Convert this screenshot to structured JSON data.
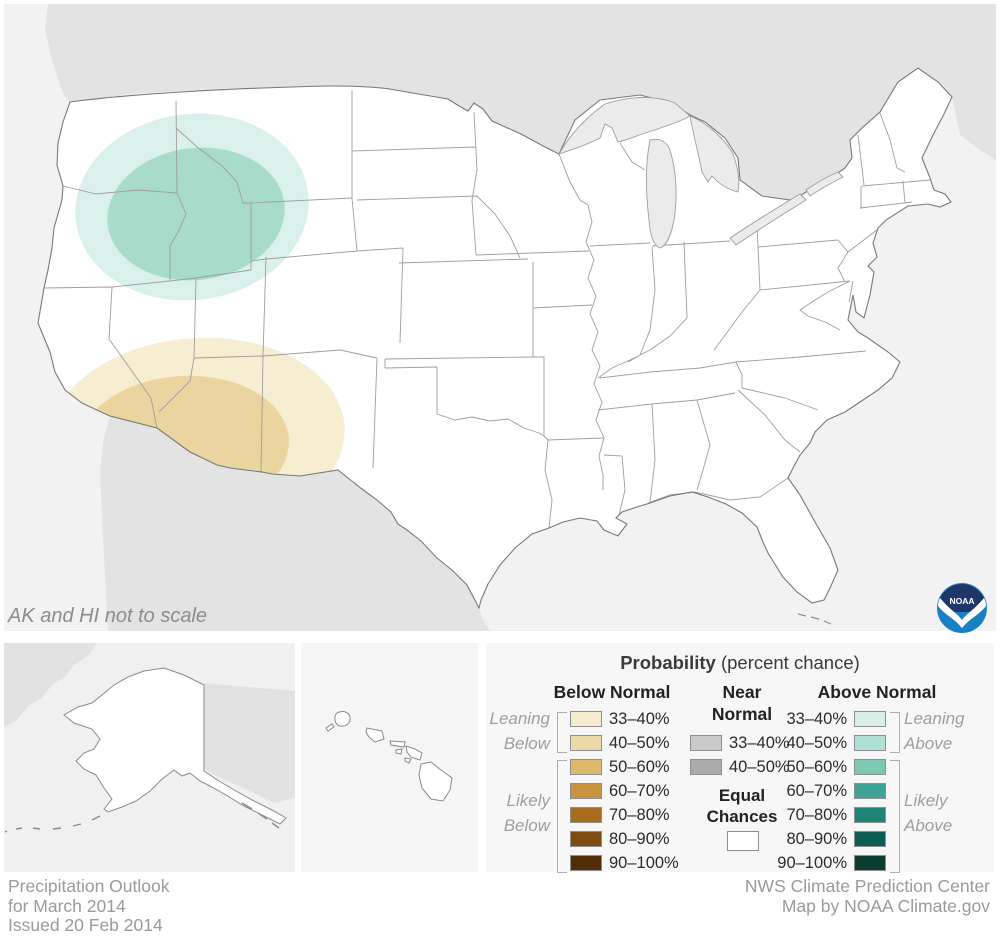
{
  "map_note": "AK and HI not to scale",
  "noaa": {
    "logo_text": "NOAA"
  },
  "footer": {
    "left_lines": [
      "Precipitation Outlook",
      "for March 2014",
      "Issued 20 Feb 2014"
    ],
    "right_lines": [
      "NWS Climate Prediction Center",
      "Map by NOAA Climate.gov"
    ]
  },
  "legend": {
    "title_bold": "Probability",
    "title_rest": " (percent chance)",
    "below": {
      "header": "Below Normal",
      "rows": [
        {
          "label": "33–40%",
          "color": "#f6eccf"
        },
        {
          "label": "40–50%",
          "color": "#ecd9a7"
        },
        {
          "label": "50–60%",
          "color": "#dcb96d"
        },
        {
          "label": "60–70%",
          "color": "#c99440"
        },
        {
          "label": "70–80%",
          "color": "#a96c1f"
        },
        {
          "label": "80–90%",
          "color": "#7e4b10"
        },
        {
          "label": "90–100%",
          "color": "#4e2d07"
        }
      ]
    },
    "near": {
      "header_lines": [
        "Near",
        "Normal"
      ],
      "rows": [
        {
          "label": "33–40%",
          "color": "#c9c9c9"
        },
        {
          "label": "40–50%",
          "color": "#ababab"
        }
      ]
    },
    "above": {
      "header": "Above Normal",
      "rows": [
        {
          "label": "33–40%",
          "color": "#d8efe9"
        },
        {
          "label": "40–50%",
          "color": "#b0e0d3"
        },
        {
          "label": "50–60%",
          "color": "#7cc7b2"
        },
        {
          "label": "60–70%",
          "color": "#3fa393"
        },
        {
          "label": "70–80%",
          "color": "#1d8477"
        },
        {
          "label": "80–90%",
          "color": "#0c5e52"
        },
        {
          "label": "90–100%",
          "color": "#0c3b31"
        }
      ]
    },
    "equal": {
      "label_lines": [
        "Equal",
        "Chances"
      ],
      "color": "#ffffff"
    },
    "annotations": {
      "leaning_below": [
        "Leaning",
        "Below"
      ],
      "likely_below": [
        "Likely",
        "Below"
      ],
      "leaning_above": [
        "Leaning",
        "Above"
      ],
      "likely_above": [
        "Likely",
        "Above"
      ]
    }
  },
  "map_colors": {
    "above_outer": "#daf0ea",
    "above_inner": "#a9dbcb",
    "below_outer": "#f7edd1",
    "below_inner": "#ead5a0"
  },
  "map_data": {
    "type": "probability-outlook-map",
    "regions": [
      {
        "outlook": "Leaning Above",
        "probability": "33–40%",
        "location": "interior Pacific Northwest and northern Great Basin"
      },
      {
        "outlook": "Leaning Above",
        "probability": "40–50%",
        "location": "southern Idaho, northeastern Nevada, northern Utah"
      },
      {
        "outlook": "Leaning Below",
        "probability": "33–40%",
        "location": "Southwest from southern California to southwestern New Mexico"
      },
      {
        "outlook": "Leaning Below",
        "probability": "40–50%",
        "location": "southern California and central-southern Arizona"
      }
    ],
    "remainder": "Equal Chances (white)"
  }
}
